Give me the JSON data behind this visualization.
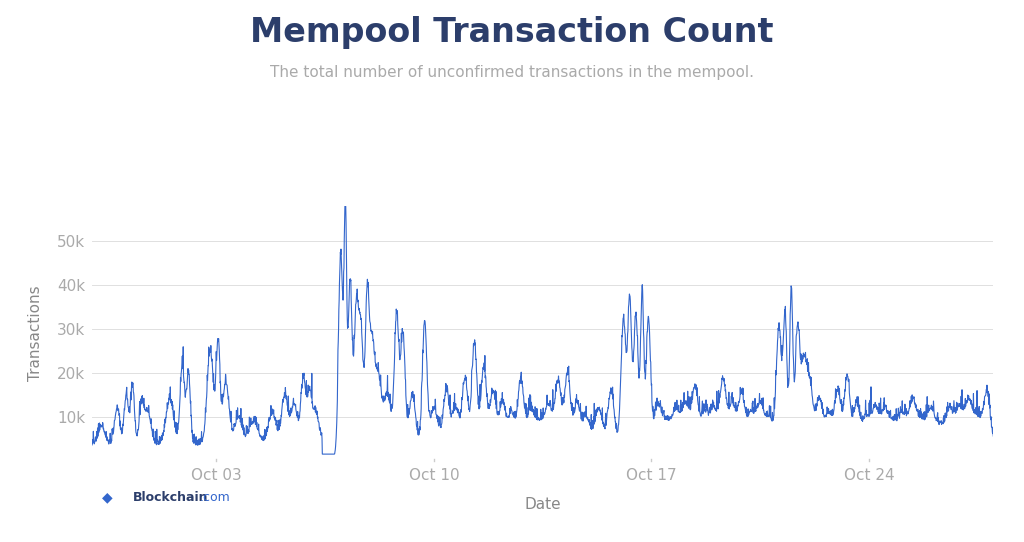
{
  "title": "Mempool Transaction Count",
  "subtitle": "The total number of unconfirmed transactions in the mempool.",
  "xlabel": "Date",
  "ylabel": "Transactions",
  "line_color": "#3366cc",
  "background_color": "#ffffff",
  "grid_color": "#e0e0e0",
  "title_color": "#2c3e6b",
  "subtitle_color": "#aaaaaa",
  "axis_label_color": "#888888",
  "tick_label_color": "#aaaaaa",
  "ylim": [
    0,
    58000
  ],
  "yticks": [
    0,
    10000,
    20000,
    30000,
    40000,
    50000
  ],
  "ytick_labels": [
    "",
    "10k",
    "20k",
    "30k",
    "40k",
    "50k"
  ],
  "xtick_labels": [
    "Oct 03",
    "Oct 10",
    "Oct 17",
    "Oct 24"
  ],
  "watermark_text": "Blockchain",
  "watermark_com": ".com",
  "title_fontsize": 24,
  "subtitle_fontsize": 11,
  "axis_label_fontsize": 11,
  "tick_fontsize": 11
}
